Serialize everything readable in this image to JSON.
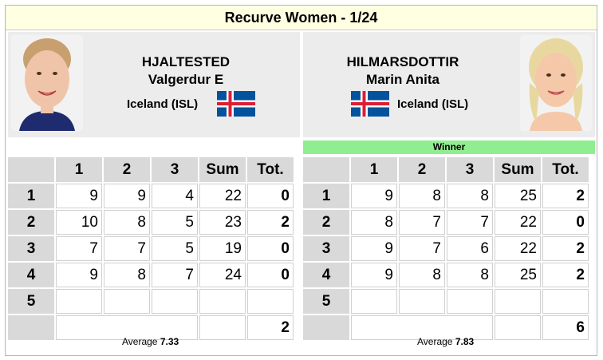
{
  "title": "Recurve Women - 1/24",
  "left": {
    "surname": "HJALTESTED",
    "given": "Valgerdur E",
    "country": "Iceland (ISL)",
    "avg_label": "Average",
    "avg_value": "7.33",
    "headers": [
      "",
      "1",
      "2",
      "3",
      "Sum",
      "Tot."
    ],
    "rows": [
      {
        "label": "1",
        "a1": "9",
        "a2": "9",
        "a3": "4",
        "sum": "22",
        "tot": "0"
      },
      {
        "label": "2",
        "a1": "10",
        "a2": "8",
        "a3": "5",
        "sum": "23",
        "tot": "2"
      },
      {
        "label": "3",
        "a1": "7",
        "a2": "7",
        "a3": "5",
        "sum": "19",
        "tot": "0"
      },
      {
        "label": "4",
        "a1": "9",
        "a2": "8",
        "a3": "7",
        "sum": "24",
        "tot": "0"
      },
      {
        "label": "5",
        "a1": "",
        "a2": "",
        "a3": "",
        "sum": "",
        "tot": ""
      }
    ],
    "total": "2"
  },
  "right": {
    "surname": "HILMARSDOTTIR",
    "given": "Marin Anita",
    "country": "Iceland (ISL)",
    "winner_label": "Winner",
    "avg_label": "Average",
    "avg_value": "7.83",
    "headers": [
      "",
      "1",
      "2",
      "3",
      "Sum",
      "Tot."
    ],
    "rows": [
      {
        "label": "1",
        "a1": "9",
        "a2": "8",
        "a3": "8",
        "sum": "25",
        "tot": "2"
      },
      {
        "label": "2",
        "a1": "8",
        "a2": "7",
        "a3": "7",
        "sum": "22",
        "tot": "0"
      },
      {
        "label": "3",
        "a1": "9",
        "a2": "7",
        "a3": "6",
        "sum": "22",
        "tot": "2"
      },
      {
        "label": "4",
        "a1": "9",
        "a2": "8",
        "a3": "8",
        "sum": "25",
        "tot": "2"
      },
      {
        "label": "5",
        "a1": "",
        "a2": "",
        "a3": "",
        "sum": "",
        "tot": ""
      }
    ],
    "total": "6"
  },
  "colors": {
    "title_bg": "#ffffe1",
    "panel_bg": "#ececec",
    "header_bg": "#d9d9d9",
    "winner_bg": "#90ee90",
    "flag_blue": "#02529c",
    "flag_red": "#dc1e35"
  }
}
